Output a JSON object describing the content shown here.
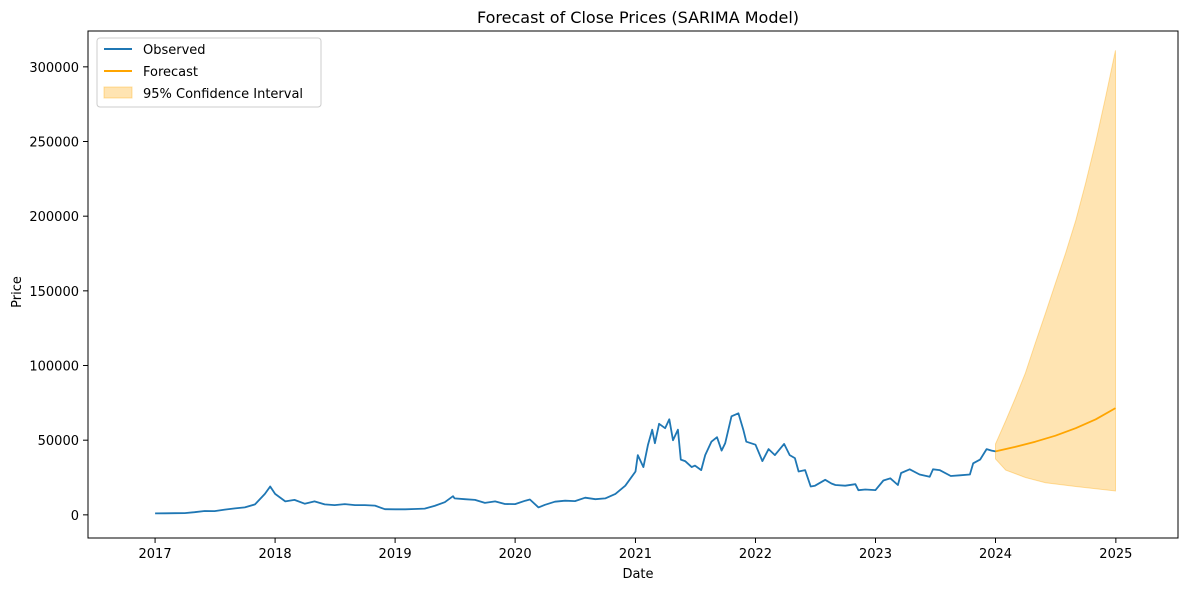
{
  "chart_data": {
    "type": "line",
    "title": "Forecast of Close Prices (SARIMA Model)",
    "xlabel": "Date",
    "ylabel": "Price",
    "x_range": [
      "2016-06-11",
      "2025-07-09"
    ],
    "ylim": [
      -15500,
      324000
    ],
    "x_ticks": [
      "2017",
      "2018",
      "2019",
      "2020",
      "2021",
      "2022",
      "2023",
      "2024",
      "2025"
    ],
    "y_ticks": [
      0,
      50000,
      100000,
      150000,
      200000,
      250000,
      300000
    ],
    "grid": false,
    "legend_position": "upper left",
    "colors": {
      "observed": "#1f77b4",
      "forecast": "#ffa500",
      "ci_fill": "#ffa500"
    },
    "legend": [
      "Observed",
      "Forecast",
      "95% Confidence Interval"
    ],
    "series": [
      {
        "name": "Observed",
        "points": [
          [
            "2017-01-01",
            1000
          ],
          [
            "2017-02-01",
            1050
          ],
          [
            "2017-03-01",
            1100
          ],
          [
            "2017-04-01",
            1200
          ],
          [
            "2017-05-01",
            1800
          ],
          [
            "2017-06-01",
            2600
          ],
          [
            "2017-07-01",
            2500
          ],
          [
            "2017-08-01",
            3500
          ],
          [
            "2017-09-01",
            4300
          ],
          [
            "2017-10-01",
            5000
          ],
          [
            "2017-11-01",
            7000
          ],
          [
            "2017-12-01",
            14000
          ],
          [
            "2017-12-17",
            19000
          ],
          [
            "2018-01-01",
            14000
          ],
          [
            "2018-02-01",
            9000
          ],
          [
            "2018-03-01",
            10000
          ],
          [
            "2018-04-01",
            7500
          ],
          [
            "2018-05-01",
            9000
          ],
          [
            "2018-06-01",
            7000
          ],
          [
            "2018-07-01",
            6500
          ],
          [
            "2018-08-01",
            7200
          ],
          [
            "2018-09-01",
            6500
          ],
          [
            "2018-10-01",
            6500
          ],
          [
            "2018-11-01",
            6200
          ],
          [
            "2018-12-01",
            3800
          ],
          [
            "2019-01-01",
            3700
          ],
          [
            "2019-02-01",
            3700
          ],
          [
            "2019-03-01",
            3900
          ],
          [
            "2019-04-01",
            4200
          ],
          [
            "2019-05-01",
            6000
          ],
          [
            "2019-06-01",
            8500
          ],
          [
            "2019-06-26",
            12500
          ],
          [
            "2019-07-01",
            11000
          ],
          [
            "2019-08-01",
            10500
          ],
          [
            "2019-09-01",
            10000
          ],
          [
            "2019-10-01",
            8000
          ],
          [
            "2019-11-01",
            9000
          ],
          [
            "2019-12-01",
            7300
          ],
          [
            "2020-01-01",
            7200
          ],
          [
            "2020-02-01",
            9500
          ],
          [
            "2020-02-15",
            10300
          ],
          [
            "2020-03-12",
            5000
          ],
          [
            "2020-04-01",
            6700
          ],
          [
            "2020-05-01",
            8800
          ],
          [
            "2020-06-01",
            9500
          ],
          [
            "2020-07-01",
            9200
          ],
          [
            "2020-08-01",
            11500
          ],
          [
            "2020-09-01",
            10500
          ],
          [
            "2020-10-01",
            11000
          ],
          [
            "2020-11-01",
            14000
          ],
          [
            "2020-12-01",
            19500
          ],
          [
            "2021-01-01",
            29000
          ],
          [
            "2021-01-08",
            40000
          ],
          [
            "2021-01-25",
            32000
          ],
          [
            "2021-02-08",
            47000
          ],
          [
            "2021-02-21",
            57000
          ],
          [
            "2021-03-01",
            48000
          ],
          [
            "2021-03-14",
            61000
          ],
          [
            "2021-04-01",
            58000
          ],
          [
            "2021-04-14",
            64000
          ],
          [
            "2021-04-25",
            50000
          ],
          [
            "2021-05-10",
            57000
          ],
          [
            "2021-05-19",
            37000
          ],
          [
            "2021-06-01",
            36000
          ],
          [
            "2021-06-21",
            32000
          ],
          [
            "2021-07-01",
            33000
          ],
          [
            "2021-07-20",
            30000
          ],
          [
            "2021-08-01",
            40000
          ],
          [
            "2021-08-20",
            49000
          ],
          [
            "2021-09-06",
            52000
          ],
          [
            "2021-09-20",
            43000
          ],
          [
            "2021-10-01",
            48000
          ],
          [
            "2021-10-20",
            66000
          ],
          [
            "2021-11-10",
            68000
          ],
          [
            "2021-11-25",
            57000
          ],
          [
            "2021-12-04",
            49000
          ],
          [
            "2022-01-01",
            47000
          ],
          [
            "2022-01-22",
            36000
          ],
          [
            "2022-02-10",
            44000
          ],
          [
            "2022-03-01",
            40000
          ],
          [
            "2022-03-29",
            47500
          ],
          [
            "2022-04-15",
            40000
          ],
          [
            "2022-05-01",
            38000
          ],
          [
            "2022-05-12",
            29000
          ],
          [
            "2022-06-01",
            30000
          ],
          [
            "2022-06-18",
            19000
          ],
          [
            "2022-07-01",
            19500
          ],
          [
            "2022-08-01",
            23500
          ],
          [
            "2022-08-20",
            21000
          ],
          [
            "2022-09-01",
            20000
          ],
          [
            "2022-10-01",
            19500
          ],
          [
            "2022-11-01",
            20500
          ],
          [
            "2022-11-10",
            16500
          ],
          [
            "2022-12-01",
            17000
          ],
          [
            "2023-01-01",
            16600
          ],
          [
            "2023-01-25",
            23000
          ],
          [
            "2023-02-15",
            24500
          ],
          [
            "2023-03-10",
            20000
          ],
          [
            "2023-03-20",
            28000
          ],
          [
            "2023-04-15",
            30500
          ],
          [
            "2023-05-15",
            27000
          ],
          [
            "2023-06-15",
            25500
          ],
          [
            "2023-06-25",
            30500
          ],
          [
            "2023-07-15",
            30000
          ],
          [
            "2023-08-18",
            26000
          ],
          [
            "2023-09-15",
            26500
          ],
          [
            "2023-10-15",
            27000
          ],
          [
            "2023-10-25",
            34500
          ],
          [
            "2023-11-15",
            37000
          ],
          [
            "2023-12-05",
            44000
          ],
          [
            "2023-12-20",
            43000
          ],
          [
            "2024-01-01",
            42500
          ]
        ]
      },
      {
        "name": "Forecast",
        "points": [
          [
            "2024-01-01",
            42500
          ],
          [
            "2024-03-01",
            45500
          ],
          [
            "2024-05-01",
            49000
          ],
          [
            "2024-07-01",
            53000
          ],
          [
            "2024-09-01",
            58000
          ],
          [
            "2024-11-01",
            64000
          ],
          [
            "2024-12-31",
            71500
          ]
        ]
      },
      {
        "name": "95% Confidence Interval",
        "lower": [
          [
            "2024-01-01",
            37500
          ],
          [
            "2024-02-01",
            30000
          ],
          [
            "2024-04-01",
            25000
          ],
          [
            "2024-06-01",
            21500
          ],
          [
            "2024-09-01",
            19000
          ],
          [
            "2024-12-31",
            16000
          ]
        ],
        "upper": [
          [
            "2024-01-01",
            47500
          ],
          [
            "2024-02-01",
            63000
          ],
          [
            "2024-03-01",
            78000
          ],
          [
            "2024-04-01",
            95000
          ],
          [
            "2024-05-01",
            115000
          ],
          [
            "2024-06-01",
            135000
          ],
          [
            "2024-07-01",
            155000
          ],
          [
            "2024-08-01",
            175000
          ],
          [
            "2024-09-01",
            197000
          ],
          [
            "2024-10-01",
            222000
          ],
          [
            "2024-11-01",
            250000
          ],
          [
            "2024-12-01",
            280000
          ],
          [
            "2024-12-31",
            311000
          ]
        ]
      }
    ]
  }
}
